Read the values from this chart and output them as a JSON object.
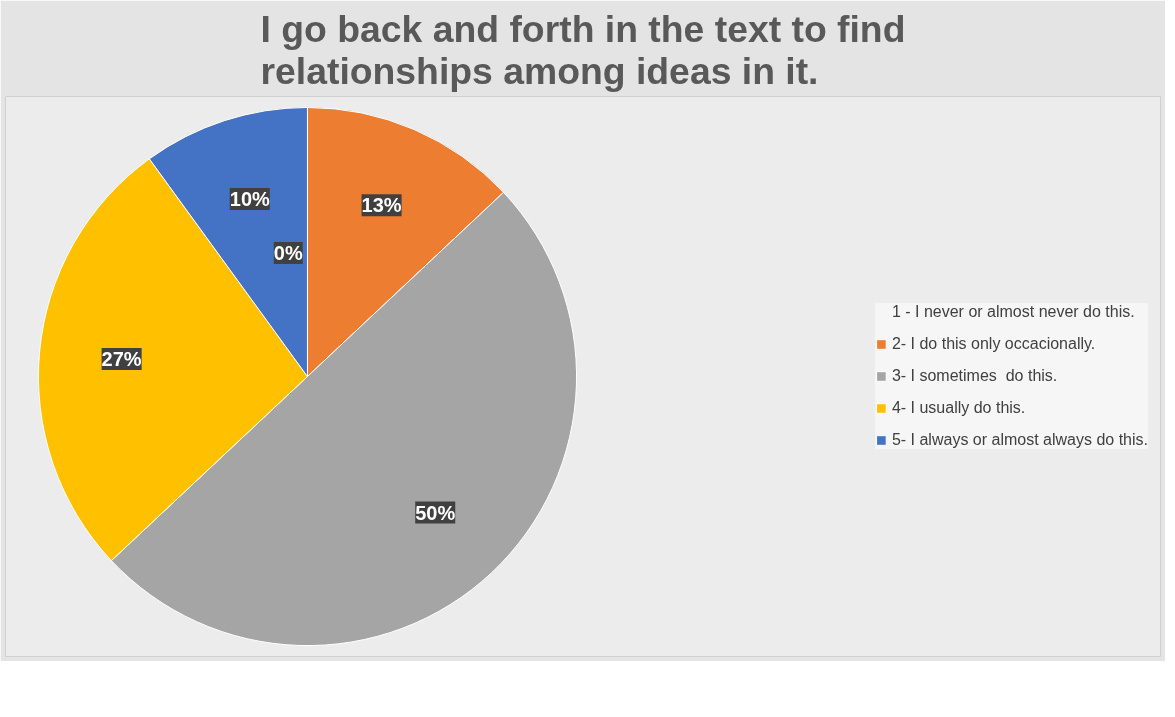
{
  "chart_data": {
    "type": "pie",
    "title": "I go back and forth in the text to find relationships among ideas in it.",
    "categories": [
      "1 - I never or almost never do this.",
      "2- I do this only occacionally.",
      "3- I sometimes  do this.",
      "4- I usually do this.",
      "5- I always or almost always do this."
    ],
    "values": [
      0,
      13,
      50,
      27,
      10
    ],
    "colors": [
      "#5b9bd5",
      "#ed7d31",
      "#a5a5a5",
      "#ffc000",
      "#4472c4"
    ],
    "value_labels": [
      "0%",
      "13%",
      "50%",
      "27%",
      "10%"
    ],
    "legend": "right"
  }
}
